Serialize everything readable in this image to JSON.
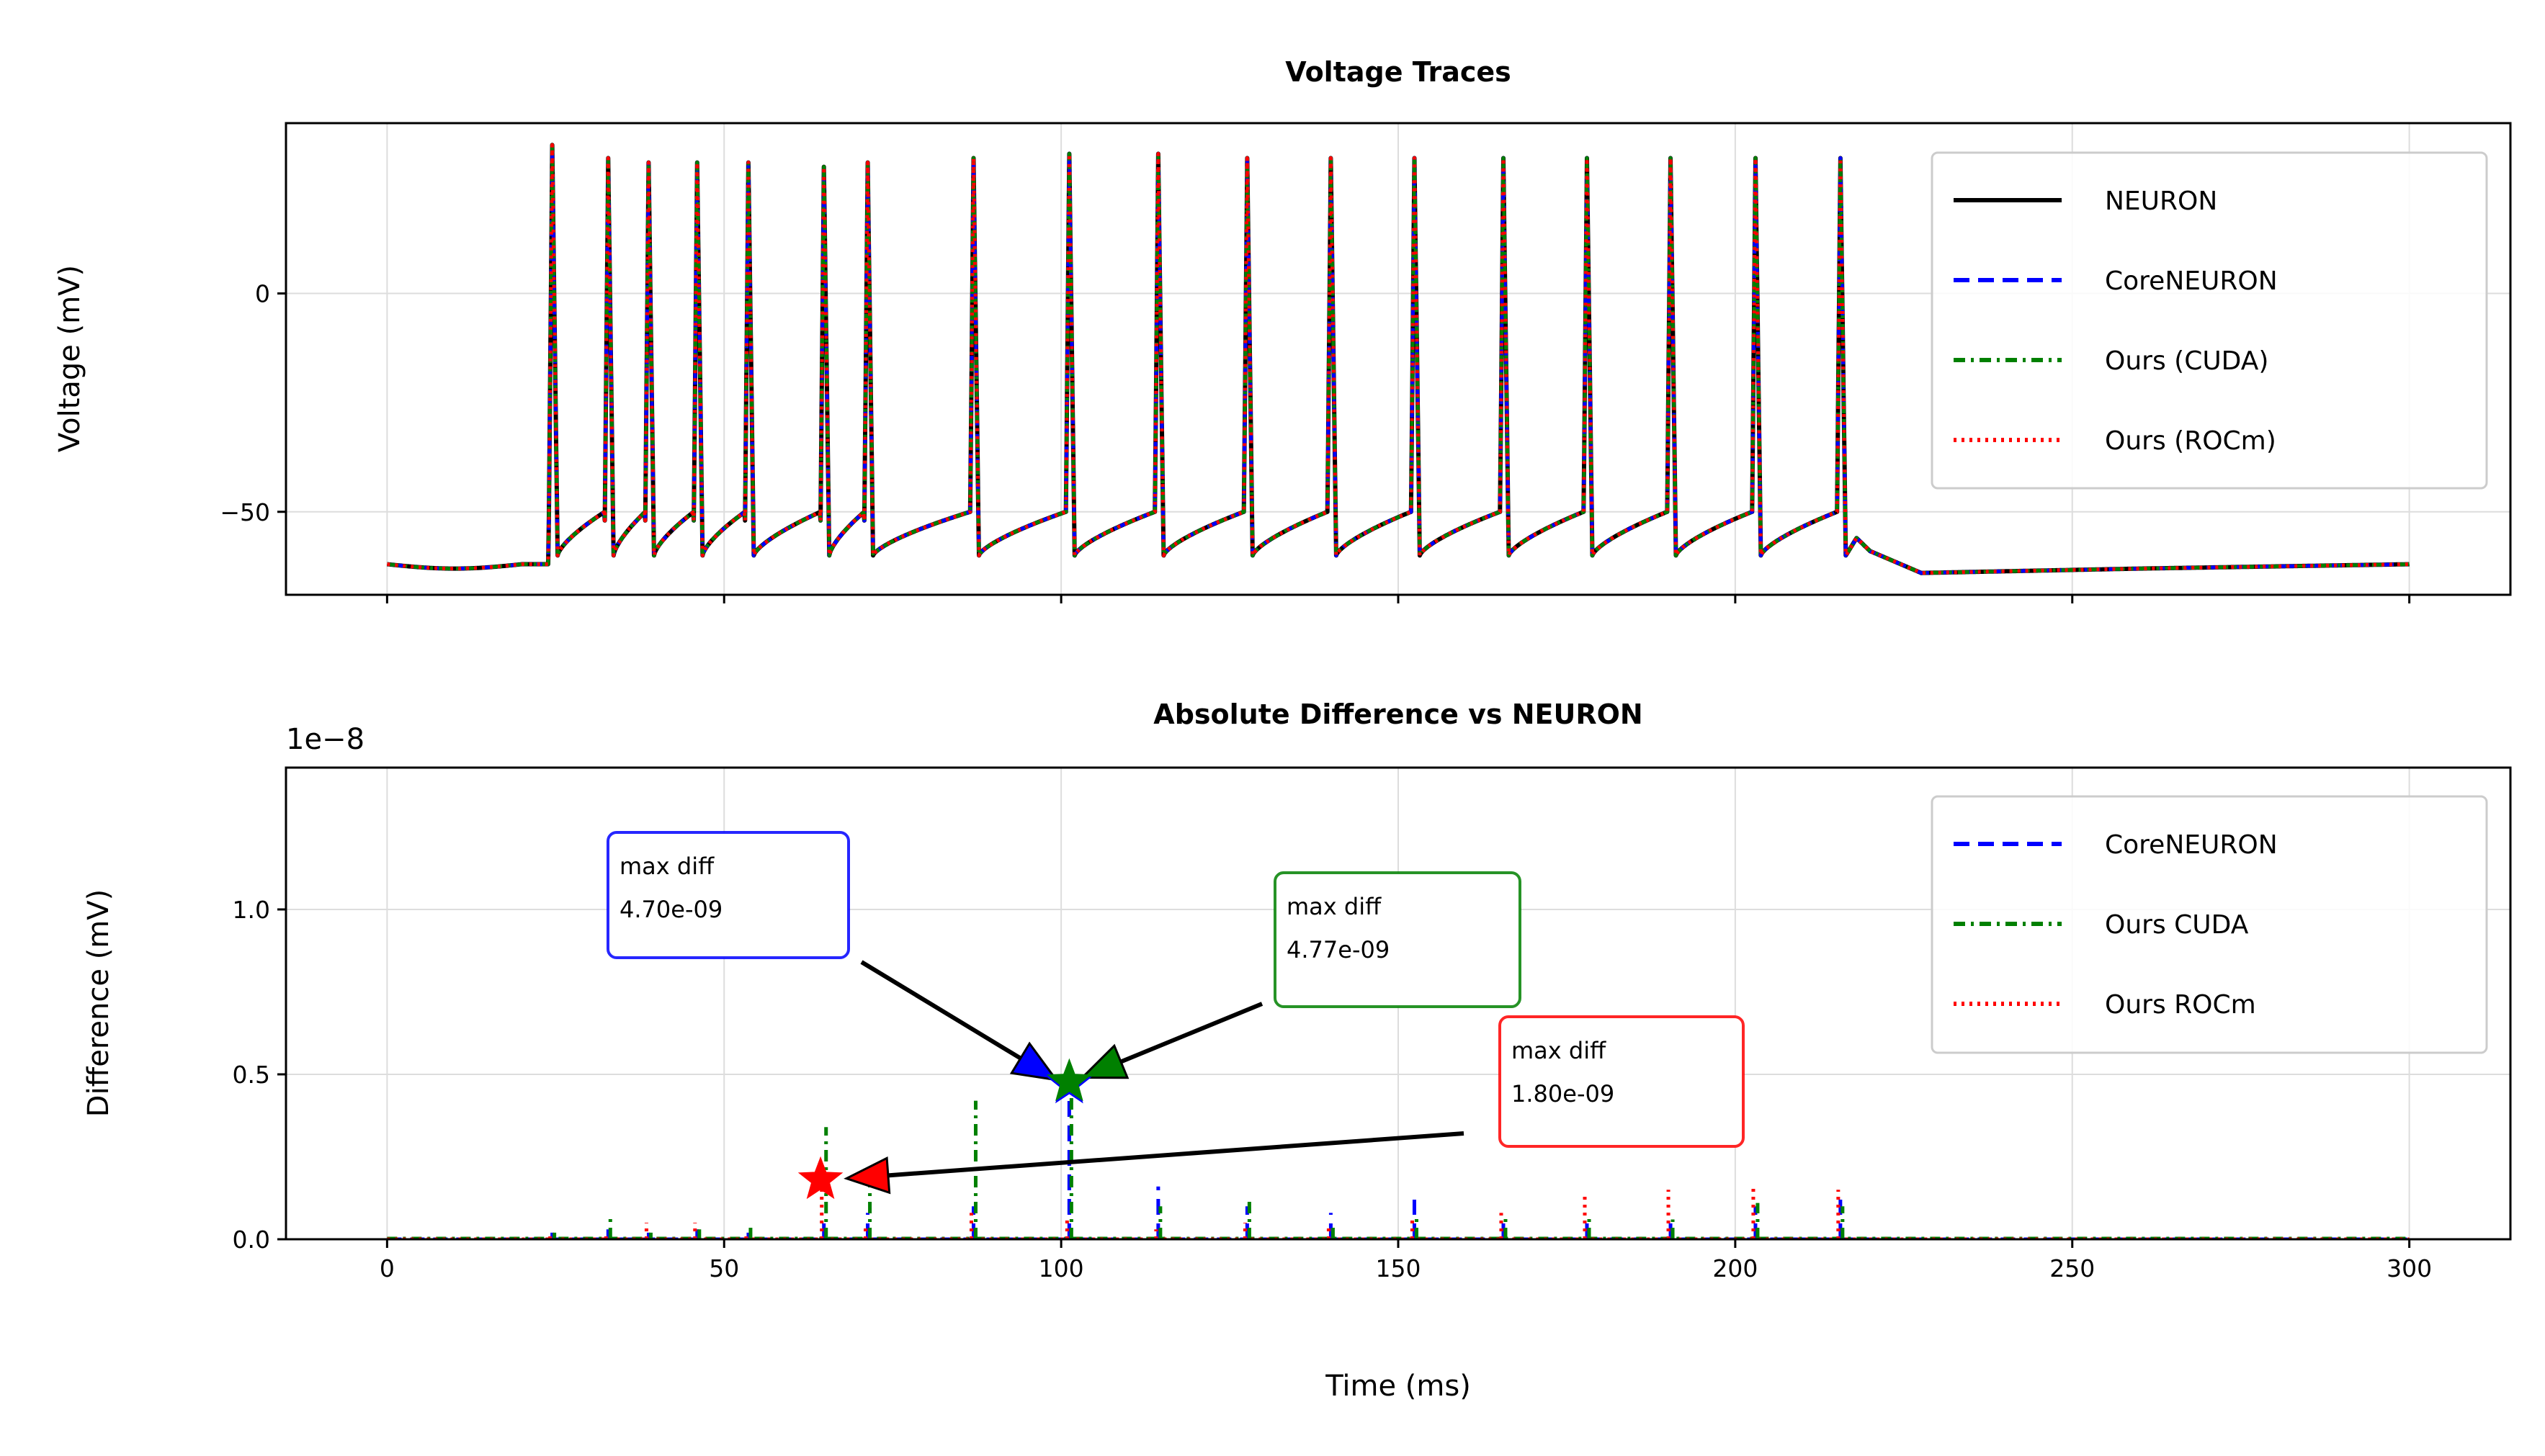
{
  "chart_data": [
    {
      "type": "line",
      "title": "Voltage Traces",
      "xlabel": "",
      "ylabel": "Voltage (mV)",
      "xlim": [
        -15,
        315
      ],
      "ylim": [
        -69,
        39
      ],
      "xticks": [
        0,
        50,
        100,
        150,
        200,
        250,
        300
      ],
      "yticks": [
        -50,
        0
      ],
      "ytick_labels": [
        "−50",
        "0"
      ],
      "grid": true,
      "legend_position": "top-right",
      "spike_times": [
        24.5,
        32.8,
        38.8,
        46.0,
        53.6,
        64.8,
        71.3,
        87.0,
        101.2,
        114.4,
        127.6,
        140.0,
        152.4,
        165.6,
        178.0,
        190.4,
        203.0,
        215.6
      ],
      "spike_peaks": [
        34,
        31,
        30,
        30,
        30,
        29,
        30,
        31,
        32,
        32,
        31,
        31,
        31,
        31,
        31,
        31,
        31,
        31
      ],
      "trace_samples": {
        "x": [
          0,
          5,
          20,
          24.5,
          26,
          101.2,
          103,
          215.6,
          218,
          220,
          228,
          260,
          300
        ],
        "y": [
          -62,
          -63,
          -62,
          34,
          -60,
          32,
          -59,
          31,
          -60,
          -56,
          -64,
          -63,
          -62
        ]
      },
      "series": [
        {
          "name": "NEURON",
          "color": "#000000",
          "dash": "solid"
        },
        {
          "name": "CoreNEURON",
          "color": "#0000ff",
          "dash": "dashed"
        },
        {
          "name": "Ours (CUDA)",
          "color": "#008000",
          "dash": "dashdot"
        },
        {
          "name": "Ours (ROCm)",
          "color": "#ff0000",
          "dash": "dotted"
        }
      ]
    },
    {
      "type": "line",
      "title": "Absolute Difference vs NEURON",
      "xlabel": "Time (ms)",
      "ylabel": "Difference (mV)",
      "offset_label": "1e−8",
      "xlim": [
        -15,
        315
      ],
      "ylim": [
        0,
        1.43
      ],
      "xticks": [
        0,
        50,
        100,
        150,
        200,
        250,
        300
      ],
      "yticks": [
        0.0,
        0.5,
        1.0
      ],
      "ytick_labels": [
        "0.0",
        "0.5",
        "1.0"
      ],
      "grid": true,
      "legend_position": "top-right",
      "series": [
        {
          "name": "CoreNEURON",
          "color": "#0000ff",
          "dash": "dashed",
          "x": [
            24.5,
            32.8,
            38.8,
            46.0,
            53.6,
            64.8,
            71.3,
            87.0,
            101.2,
            114.4,
            127.6,
            140.0,
            152.4,
            165.6,
            178.0,
            190.4,
            203.0,
            215.6
          ],
          "y": [
            0.02,
            0.03,
            0.02,
            0.03,
            0.02,
            0.05,
            0.08,
            0.1,
            0.47,
            0.16,
            0.1,
            0.08,
            0.12,
            0.06,
            0.05,
            0.06,
            0.1,
            0.12
          ]
        },
        {
          "name": "Ours CUDA",
          "color": "#008000",
          "dash": "dashdot",
          "x": [
            24.5,
            32.8,
            38.8,
            46.0,
            53.6,
            64.8,
            71.3,
            87.0,
            101.2,
            114.4,
            127.6,
            140.0,
            152.4,
            165.6,
            178.0,
            190.4,
            203.0,
            215.6
          ],
          "y": [
            0.02,
            0.07,
            0.02,
            0.03,
            0.04,
            0.34,
            0.18,
            0.42,
            0.48,
            0.1,
            0.13,
            0.05,
            0.07,
            0.07,
            0.07,
            0.06,
            0.11,
            0.1
          ]
        },
        {
          "name": "Ours ROCm",
          "color": "#ff0000",
          "dash": "dotted",
          "x": [
            24.5,
            32.8,
            38.8,
            46.0,
            53.6,
            64.8,
            71.3,
            87.0,
            101.2,
            114.4,
            127.6,
            140.0,
            152.4,
            165.6,
            178.0,
            190.4,
            203.0,
            215.6
          ],
          "y": [
            0.01,
            0.02,
            0.05,
            0.05,
            0.02,
            0.18,
            0.04,
            0.08,
            0.07,
            0.03,
            0.05,
            0.04,
            0.06,
            0.08,
            0.13,
            0.15,
            0.16,
            0.15
          ]
        }
      ],
      "annotations": [
        {
          "text": [
            "max diff",
            "4.70e-09"
          ],
          "color": "#0000ff",
          "point": [
            101.2,
            0.47
          ]
        },
        {
          "text": [
            "max diff",
            "4.77e-09"
          ],
          "color": "#008000",
          "point": [
            101.2,
            0.477
          ]
        },
        {
          "text": [
            "max diff",
            "1.80e-09"
          ],
          "color": "#ff0000",
          "point": [
            64.3,
            0.18
          ]
        }
      ]
    }
  ]
}
